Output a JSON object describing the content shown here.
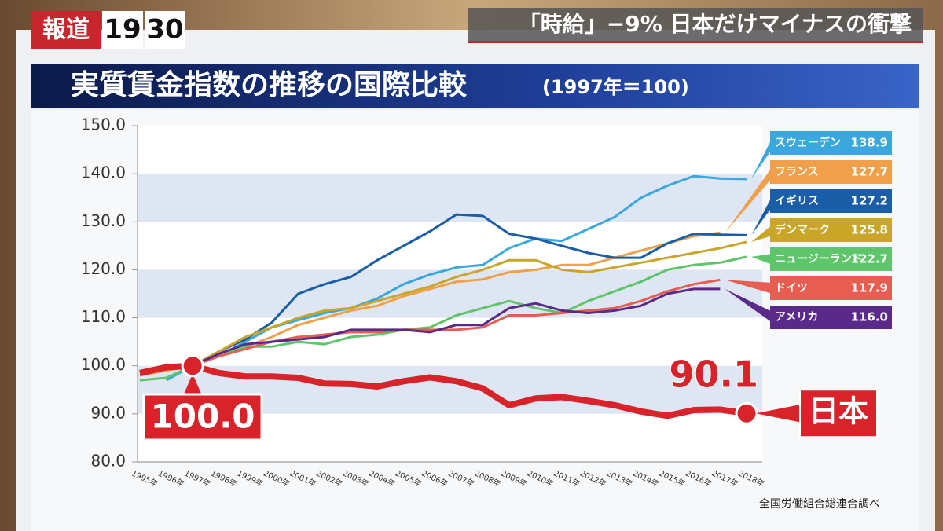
{
  "header": {
    "program": [
      "報道",
      "19",
      "30"
    ],
    "headline": "「時給」−9% 日本だけマイナスの衝撃"
  },
  "chart_data": {
    "type": "line",
    "title": "実質賃金指数の推移の国際比較",
    "subtitle": "(1997年＝100)",
    "source": "全国労働組合総連合調べ",
    "categories": [
      "1995年",
      "1996年",
      "1997年",
      "1998年",
      "1999年",
      "2000年",
      "2001年",
      "2002年",
      "2003年",
      "2004年",
      "2005年",
      "2006年",
      "2007年",
      "2008年",
      "2009年",
      "2010年",
      "2011年",
      "2012年",
      "2013年",
      "2014年",
      "2015年",
      "2016年",
      "2017年",
      "2018年"
    ],
    "ylim": [
      80,
      150
    ],
    "yticks": [
      {
        "value": 80,
        "label": "80.0"
      },
      {
        "value": 90,
        "label": "90.0"
      },
      {
        "value": 100,
        "label": "100.0"
      },
      {
        "value": 110,
        "label": "110.0"
      },
      {
        "value": 120,
        "label": "120.0"
      },
      {
        "value": 130,
        "label": "130.0"
      },
      {
        "value": 140,
        "label": "140.0"
      },
      {
        "value": 150,
        "label": "150.0"
      }
    ],
    "bands": true,
    "legend": "right",
    "series": [
      {
        "name": "スウェーデン",
        "color": "#3aa7dd",
        "end_label": "138.9",
        "values": [
          null,
          97,
          100,
          102,
          105,
          108,
          109.5,
          111,
          112,
          114,
          117,
          119,
          120.5,
          121,
          124.5,
          126.5,
          126,
          128.5,
          131,
          135,
          137.5,
          139.5,
          139,
          138.9
        ]
      },
      {
        "name": "フランス",
        "color": "#f0a04b",
        "end_label": "127.7",
        "values": [
          98,
          99,
          100,
          102,
          104,
          106,
          108.5,
          110,
          111.5,
          112.5,
          114.5,
          116,
          117.5,
          118,
          119.5,
          120,
          121,
          121,
          122.5,
          124,
          125.5,
          127,
          127.7,
          null
        ]
      },
      {
        "name": "イギリス",
        "color": "#1a5ea8",
        "end_label": "127.2",
        "values": [
          null,
          null,
          100,
          103,
          105.5,
          109,
          115,
          117,
          118.5,
          122,
          125,
          128,
          131.5,
          131.2,
          127.5,
          126.5,
          125,
          123.5,
          122.5,
          122.5,
          125.5,
          127.5,
          127.3,
          127.2
        ]
      },
      {
        "name": "デンマーク",
        "color": "#c9a628",
        "end_label": "125.8",
        "values": [
          null,
          null,
          100,
          103,
          106,
          108,
          110,
          111.5,
          112,
          113.5,
          115,
          116.5,
          118.5,
          120,
          122,
          122,
          120,
          119.5,
          120.5,
          121.5,
          122.5,
          123.5,
          124.5,
          125.8
        ]
      },
      {
        "name": "ニュージーランド",
        "color": "#5fc56a",
        "end_label": "122.7",
        "values": [
          97,
          97.5,
          100,
          102,
          104,
          104,
          105,
          104.5,
          106,
          106.5,
          107.5,
          108,
          110.5,
          112,
          113.5,
          112,
          111,
          113.5,
          115.5,
          117.5,
          120,
          121,
          121.5,
          122.7
        ]
      },
      {
        "name": "ドイツ",
        "color": "#e85d52",
        "end_label": "117.9",
        "values": [
          98,
          99.5,
          100,
          102,
          103.5,
          105,
          106,
          106.5,
          107,
          107,
          107.5,
          107.5,
          107.5,
          108,
          110.5,
          110.5,
          111,
          111.5,
          112,
          113.5,
          115.5,
          117,
          117.9,
          null
        ]
      },
      {
        "name": "アメリカ",
        "color": "#5a2a8a",
        "end_label": "116.0",
        "values": [
          null,
          null,
          100,
          102.5,
          104.5,
          105,
          105.5,
          106,
          107.5,
          107.5,
          107.5,
          107,
          108.5,
          108.5,
          112,
          113,
          111.5,
          111,
          111.5,
          112.5,
          115,
          116,
          116,
          null
        ]
      },
      {
        "name": "日本",
        "color": "#d9232a",
        "highlight": true,
        "start_label": "100.0",
        "end_label": "90.1",
        "values": [
          98.5,
          99.7,
          100,
          98.5,
          97.8,
          97.8,
          97.5,
          96.3,
          96.2,
          95.7,
          96.8,
          97.6,
          96.8,
          95.3,
          91.8,
          93.2,
          93.5,
          92.7,
          91.8,
          90.5,
          89.6,
          90.8,
          90.9,
          90.1
        ]
      }
    ]
  }
}
